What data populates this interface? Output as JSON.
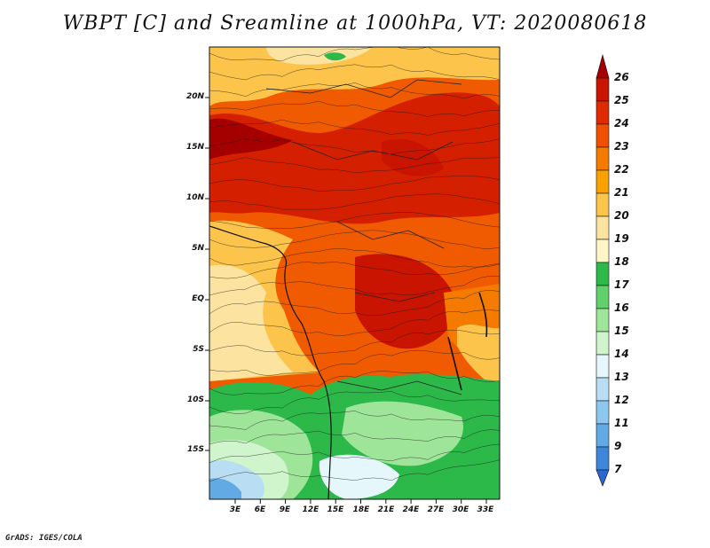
{
  "title": "WBPT [C] and Sreamline at 1000hPa, VT: 2020080618",
  "credit": "GrADS: IGES/COLA",
  "lat_labels": [
    "20N",
    "15N",
    "10N",
    "5N",
    "EQ",
    "5S",
    "10S",
    "15S"
  ],
  "lon_labels": [
    "3E",
    "6E",
    "9E",
    "12E",
    "15E",
    "18E",
    "21E",
    "24E",
    "27E",
    "30E",
    "33E"
  ],
  "colorbar": {
    "labels": [
      "26",
      "25",
      "24",
      "23",
      "22",
      "21",
      "20",
      "19",
      "18",
      "17",
      "16",
      "15",
      "14",
      "13",
      "12",
      "11",
      "9",
      "7"
    ],
    "colors": [
      "#a50000",
      "#c81400",
      "#e02a00",
      "#f05000",
      "#f47a00",
      "#f9a100",
      "#fcc44a",
      "#fde3a0",
      "#fff5c8",
      "#2db84a",
      "#5fd06a",
      "#9ee59a",
      "#d0f4cc",
      "#e6f7fb",
      "#b9def4",
      "#8dc7ee",
      "#62aae4",
      "#3d87da",
      "#2a66d0"
    ]
  }
}
